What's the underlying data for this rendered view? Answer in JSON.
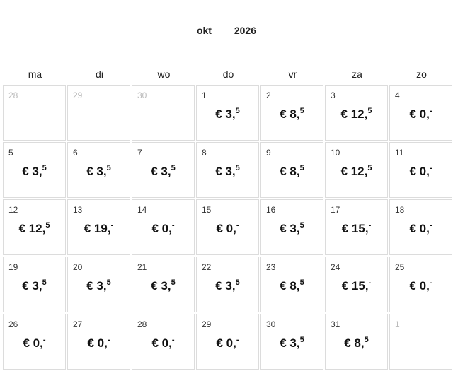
{
  "header": {
    "month": "okt",
    "year": "2026"
  },
  "weekdays": [
    "ma",
    "di",
    "wo",
    "do",
    "vr",
    "za",
    "zo"
  ],
  "days": [
    {
      "day": "28",
      "muted": true
    },
    {
      "day": "29",
      "muted": true
    },
    {
      "day": "30",
      "muted": true
    },
    {
      "day": "1",
      "price": "€ 3,",
      "cents": "5"
    },
    {
      "day": "2",
      "price": "€ 8,",
      "cents": "5"
    },
    {
      "day": "3",
      "price": "€ 12,",
      "cents": "5"
    },
    {
      "day": "4",
      "price": "€ 0,",
      "cents": "-"
    },
    {
      "day": "5",
      "price": "€ 3,",
      "cents": "5"
    },
    {
      "day": "6",
      "price": "€ 3,",
      "cents": "5"
    },
    {
      "day": "7",
      "price": "€ 3,",
      "cents": "5"
    },
    {
      "day": "8",
      "price": "€ 3,",
      "cents": "5"
    },
    {
      "day": "9",
      "price": "€ 8,",
      "cents": "5"
    },
    {
      "day": "10",
      "price": "€ 12,",
      "cents": "5"
    },
    {
      "day": "11",
      "price": "€ 0,",
      "cents": "-"
    },
    {
      "day": "12",
      "price": "€ 12,",
      "cents": "5"
    },
    {
      "day": "13",
      "price": "€ 19,",
      "cents": "-"
    },
    {
      "day": "14",
      "price": "€ 0,",
      "cents": "-"
    },
    {
      "day": "15",
      "price": "€ 0,",
      "cents": "-"
    },
    {
      "day": "16",
      "price": "€ 3,",
      "cents": "5"
    },
    {
      "day": "17",
      "price": "€ 15,",
      "cents": "-"
    },
    {
      "day": "18",
      "price": "€ 0,",
      "cents": "-"
    },
    {
      "day": "19",
      "price": "€ 3,",
      "cents": "5"
    },
    {
      "day": "20",
      "price": "€ 3,",
      "cents": "5"
    },
    {
      "day": "21",
      "price": "€ 3,",
      "cents": "5"
    },
    {
      "day": "22",
      "price": "€ 3,",
      "cents": "5"
    },
    {
      "day": "23",
      "price": "€ 8,",
      "cents": "5"
    },
    {
      "day": "24",
      "price": "€ 15,",
      "cents": "-"
    },
    {
      "day": "25",
      "price": "€ 0,",
      "cents": "-"
    },
    {
      "day": "26",
      "price": "€ 0,",
      "cents": "-"
    },
    {
      "day": "27",
      "price": "€ 0,",
      "cents": "-"
    },
    {
      "day": "28",
      "price": "€ 0,",
      "cents": "-"
    },
    {
      "day": "29",
      "price": "€ 0,",
      "cents": "-"
    },
    {
      "day": "30",
      "price": "€ 3,",
      "cents": "5"
    },
    {
      "day": "31",
      "price": "€ 8,",
      "cents": "5"
    },
    {
      "day": "1",
      "muted": true
    }
  ]
}
